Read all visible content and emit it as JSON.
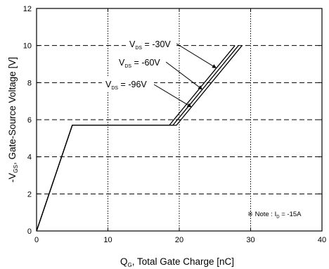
{
  "chart_data": {
    "type": "line",
    "xlabel_main": "Q",
    "xlabel_sub": "G",
    "xlabel_rest": ", Total Gate Charge [nC]",
    "ylabel_main": "-V",
    "ylabel_sub": "GS",
    "ylabel_rest": ", Gate-Source Voltage [V]",
    "xlim": [
      0,
      40
    ],
    "ylim": [
      0,
      12
    ],
    "x_ticks": [
      0,
      10,
      20,
      30,
      40
    ],
    "y_ticks": [
      0,
      2,
      4,
      6,
      8,
      10,
      12
    ],
    "grid": true,
    "series": [
      {
        "name": "V_DS = -30V",
        "points": [
          [
            0,
            0
          ],
          [
            5,
            5.7
          ],
          [
            18.6,
            5.7
          ],
          [
            27.8,
            10
          ]
        ]
      },
      {
        "name": "V_DS = -60V",
        "points": [
          [
            0,
            0
          ],
          [
            5,
            5.7
          ],
          [
            19.1,
            5.7
          ],
          [
            28.3,
            10
          ]
        ]
      },
      {
        "name": "V_DS = -96V",
        "points": [
          [
            0,
            0
          ],
          [
            5,
            5.7
          ],
          [
            19.6,
            5.7
          ],
          [
            28.8,
            10
          ]
        ]
      }
    ],
    "annotations": [
      {
        "main": "V",
        "sub": "DS",
        "rest": " = -30V"
      },
      {
        "main": "V",
        "sub": "DS",
        "rest": " = -60V"
      },
      {
        "main": "V",
        "sub": "DS",
        "rest": " = -96V"
      }
    ],
    "note": {
      "prefix": "※ Note : I",
      "sub": "D",
      "rest": " = -15A"
    }
  }
}
